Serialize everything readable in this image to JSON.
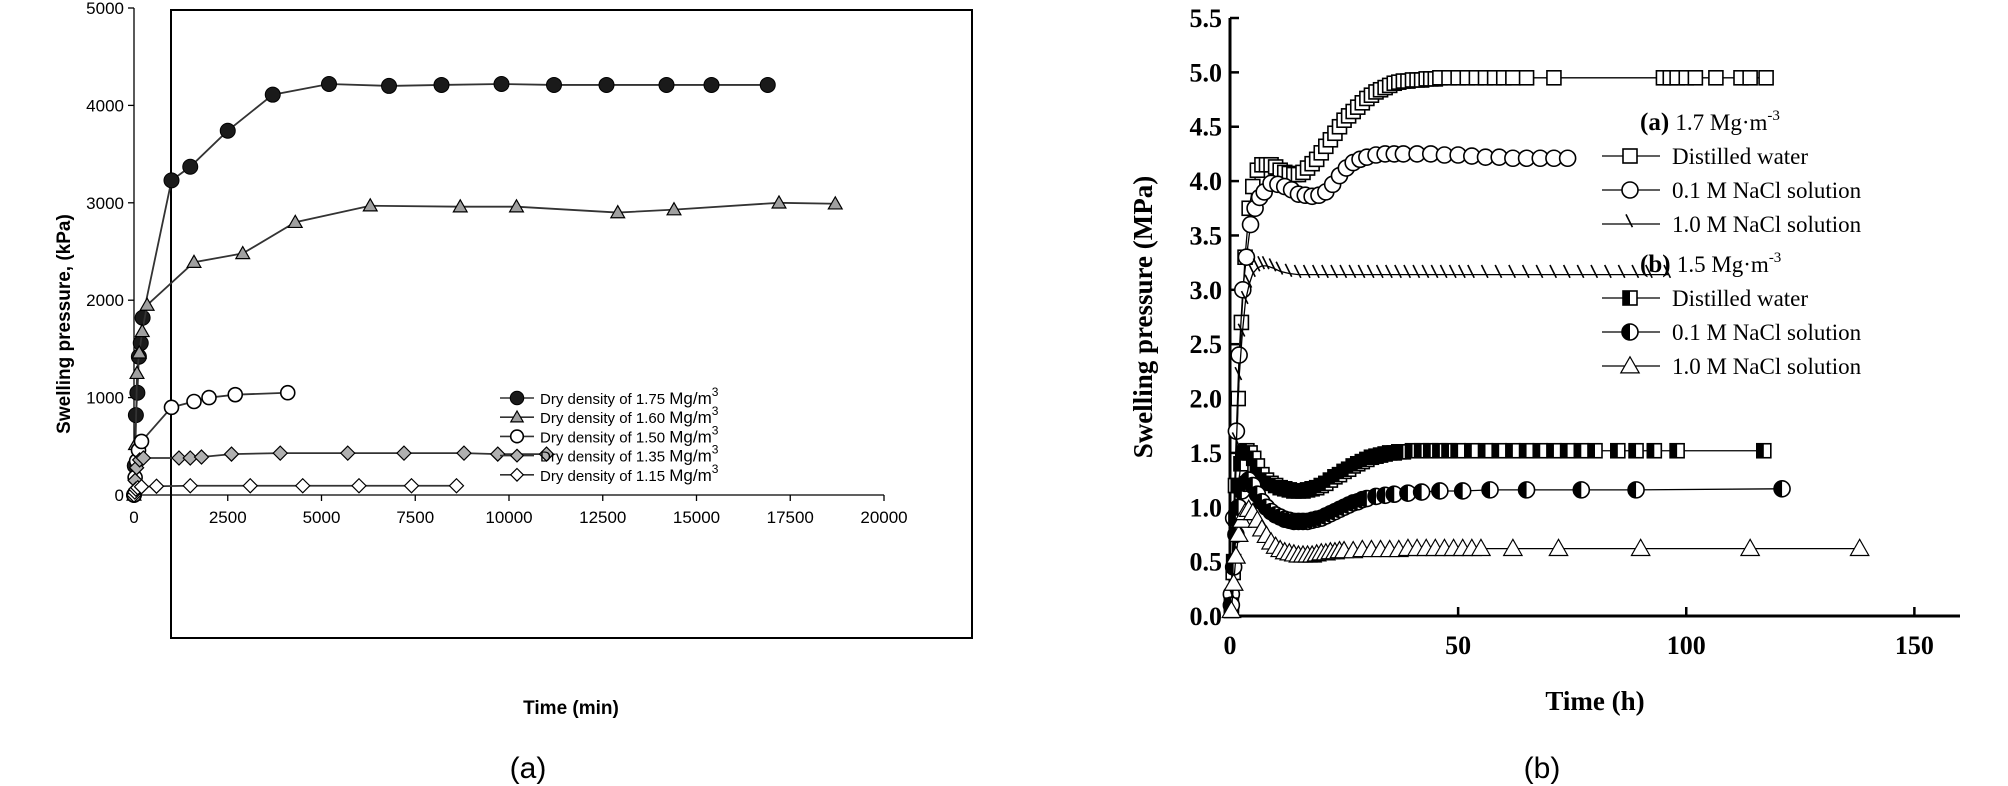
{
  "chart_data": [
    {
      "panel_label": "(a)",
      "type": "scatter",
      "xlabel": "Time (min)",
      "ylabel": "Swelling pressure, (kPa)",
      "xlim": [
        0,
        20000
      ],
      "ylim": [
        0,
        5000
      ],
      "xticks": [
        0,
        2500,
        5000,
        7500,
        10000,
        12500,
        15000,
        17500,
        20000
      ],
      "yticks": [
        0,
        1000,
        2000,
        3000,
        4000,
        5000
      ],
      "grid": false,
      "legend_position": "bottom-right",
      "series": [
        {
          "name": "Dry density of 1.75",
          "unit": "Mg/m",
          "unit_sup": "3",
          "marker": "filled-circle",
          "x": [
            0,
            20,
            50,
            90,
            130,
            180,
            230,
            1000,
            1500,
            2500,
            3700,
            5200,
            6800,
            8200,
            9800,
            11200,
            12600,
            14200,
            15400,
            16900
          ],
          "y": [
            0,
            300,
            820,
            1050,
            1420,
            1560,
            1820,
            3230,
            3370,
            3740,
            4110,
            4220,
            4200,
            4210,
            4220,
            4210,
            4210,
            4210,
            4210,
            4210
          ]
        },
        {
          "name": "Dry density of 1.60",
          "unit": "Mg/m",
          "unit_sup": "3",
          "marker": "filled-triangle",
          "x": [
            0,
            40,
            80,
            140,
            220,
            350,
            1600,
            2900,
            4300,
            6300,
            8700,
            10200,
            12900,
            14400,
            17200,
            18700
          ],
          "y": [
            0,
            520,
            1250,
            1460,
            1680,
            1950,
            2390,
            2480,
            2800,
            2970,
            2960,
            2960,
            2900,
            2930,
            3000,
            2990
          ],
          "hide_last_marker": false
        },
        {
          "name": "Dry density of 1.50",
          "unit": "Mg/m",
          "unit_sup": "3",
          "marker": "open-circle",
          "x": [
            0,
            30,
            70,
            120,
            200,
            1000,
            1600,
            2000,
            2700,
            4100
          ],
          "y": [
            0,
            180,
            350,
            460,
            550,
            900,
            960,
            1000,
            1030,
            1050
          ]
        },
        {
          "name": "Dry density of 1.35",
          "unit": "Mg/m",
          "unit_sup": "3",
          "marker": "gray-diamond",
          "x": [
            0,
            30,
            70,
            150,
            250,
            1200,
            1500,
            1800,
            2600,
            3900,
            5700,
            7200,
            8800,
            9700,
            11000
          ],
          "y": [
            0,
            150,
            280,
            360,
            380,
            380,
            380,
            390,
            420,
            430,
            430,
            430,
            430,
            420,
            420
          ]
        },
        {
          "name": "Dry density of 1.15",
          "unit": "Mg/m",
          "unit_sup": "3",
          "marker": "open-diamond",
          "x": [
            0,
            20,
            50,
            100,
            200,
            600,
            1500,
            3100,
            4500,
            6000,
            7400,
            8600
          ],
          "y": [
            0,
            30,
            60,
            75,
            85,
            90,
            95,
            95,
            95,
            95,
            95,
            95
          ]
        }
      ]
    },
    {
      "panel_label": "(b)",
      "type": "scatter",
      "xlabel": "Time (h)",
      "ylabel": "Swelling pressure (MPa)",
      "xlim": [
        0,
        160
      ],
      "ylim": [
        0,
        5.5
      ],
      "xticks": [
        0,
        50,
        100,
        150
      ],
      "yticks": [
        0.0,
        0.5,
        1.0,
        1.5,
        2.0,
        2.5,
        3.0,
        3.5,
        4.0,
        4.5,
        5.0,
        5.5
      ],
      "ytick_labels": [
        "0.0",
        "0.5",
        "1.0",
        "1.5",
        "2.0",
        "2.5",
        "3.0",
        "3.5",
        "4.0",
        "4.5",
        "5.0",
        "5.5"
      ],
      "grid": false,
      "legend_position": "right",
      "legend_groups": [
        {
          "label_bold": "(a)",
          "label": "1.7 Mg·m",
          "label_sup": "-3",
          "series": [
            0,
            1,
            2
          ]
        },
        {
          "label_bold": "(b)",
          "label": "1.5 Mg·m",
          "label_sup": "-3",
          "series": [
            3,
            4,
            5
          ]
        }
      ],
      "series": [
        {
          "name": "Distilled water",
          "marker": "open-square",
          "x": [
            0.3,
            0.7,
            1.2,
            1.8,
            2.5,
            3.3,
            4.2,
            5.0,
            6.0,
            7.0,
            8.0,
            9.0,
            10.0,
            11.0,
            12.0,
            13.0,
            14.0,
            15.0,
            16.0,
            17.0,
            18.0,
            19.0,
            20.0,
            21.0,
            22.0,
            23.0,
            24.0,
            25.0,
            26.0,
            27.0,
            28.0,
            29.0,
            30.0,
            31.0,
            32.0,
            33.0,
            34.0,
            35.0,
            36.0,
            37.0,
            38.0,
            39.0,
            40.0,
            41.0,
            42.0,
            43.0,
            44.0,
            45.0,
            46.0,
            48.0,
            50.0,
            52.0,
            54.0,
            56.0,
            58.0,
            60.0,
            62.0,
            65.0,
            71.0,
            95.0,
            96.5,
            98.0,
            100.0,
            102.0,
            106.5,
            112.0,
            114.0,
            117.5
          ],
          "y": [
            0.05,
            0.4,
            1.2,
            2.0,
            2.7,
            3.3,
            3.75,
            3.95,
            4.1,
            4.15,
            4.15,
            4.15,
            4.13,
            4.1,
            4.08,
            4.07,
            4.06,
            4.06,
            4.08,
            4.12,
            4.16,
            4.2,
            4.26,
            4.32,
            4.38,
            4.44,
            4.5,
            4.56,
            4.6,
            4.64,
            4.68,
            4.72,
            4.76,
            4.79,
            4.82,
            4.84,
            4.86,
            4.88,
            4.9,
            4.91,
            4.92,
            4.92,
            4.93,
            4.93,
            4.93,
            4.94,
            4.94,
            4.94,
            4.95,
            4.95,
            4.95,
            4.95,
            4.95,
            4.95,
            4.95,
            4.95,
            4.95,
            4.95,
            4.95,
            4.95,
            4.95,
            4.95,
            4.95,
            4.95,
            4.95,
            4.95,
            4.95,
            4.95
          ]
        },
        {
          "name": "0.1 M NaCl solution",
          "marker": "open-circle",
          "x": [
            0.3,
            0.8,
            1.4,
            2.0,
            2.8,
            3.6,
            4.5,
            5.5,
            6.5,
            7.5,
            9.0,
            10.5,
            12.0,
            13.5,
            15.0,
            16.5,
            18.0,
            19.5,
            21.0,
            22.5,
            24.0,
            25.5,
            27.0,
            28.5,
            30.0,
            32.0,
            34.0,
            36.0,
            38.0,
            41.0,
            44.0,
            47.0,
            50.0,
            53.0,
            56.0,
            59.0,
            62.0,
            65.0,
            68.0,
            71.0,
            74.0
          ],
          "y": [
            0.2,
            0.9,
            1.7,
            2.4,
            3.0,
            3.3,
            3.6,
            3.75,
            3.85,
            3.9,
            3.98,
            3.97,
            3.95,
            3.92,
            3.88,
            3.87,
            3.86,
            3.87,
            3.9,
            3.97,
            4.05,
            4.12,
            4.17,
            4.2,
            4.22,
            4.24,
            4.25,
            4.25,
            4.25,
            4.25,
            4.25,
            4.24,
            4.24,
            4.23,
            4.22,
            4.22,
            4.21,
            4.21,
            4.21,
            4.21,
            4.21
          ]
        },
        {
          "name": "1.0 M NaCl solution",
          "marker": "tick",
          "x": [
            0.3,
            0.8,
            1.4,
            2.0,
            2.7,
            3.4,
            4.2,
            5.0,
            6.0,
            7.0,
            8.0,
            9.5,
            11.0,
            13.0,
            15.0,
            17.0,
            19.0,
            21.0,
            23.0,
            25.0,
            27.0,
            29.0,
            31.0,
            33.0,
            35.0,
            37.0,
            39.0,
            41.0,
            43.0,
            45.0,
            47.0,
            49.0,
            51.0,
            53.0,
            56.0,
            59.0,
            62.0,
            65.0,
            68.0,
            71.0,
            74.0,
            77.0,
            80.0,
            83.0,
            86.0,
            89.0,
            92.0,
            96.0
          ],
          "y": [
            0.2,
            0.9,
            1.6,
            2.2,
            2.6,
            2.9,
            3.05,
            3.15,
            3.2,
            3.22,
            3.22,
            3.2,
            3.17,
            3.15,
            3.14,
            3.14,
            3.14,
            3.14,
            3.14,
            3.14,
            3.14,
            3.14,
            3.14,
            3.14,
            3.14,
            3.14,
            3.14,
            3.14,
            3.14,
            3.14,
            3.14,
            3.14,
            3.14,
            3.14,
            3.14,
            3.14,
            3.14,
            3.14,
            3.14,
            3.14,
            3.14,
            3.14,
            3.14,
            3.14,
            3.14,
            3.14,
            3.14,
            3.14
          ]
        },
        {
          "name": "Distilled water",
          "marker": "half-filled-square",
          "x": [
            0.3,
            0.8,
            1.3,
            1.8,
            2.4,
            3.0,
            3.7,
            4.4,
            5.2,
            6.0,
            7.0,
            8.0,
            9.0,
            10.0,
            11.0,
            12.0,
            13.0,
            14.0,
            15.0,
            16.0,
            17.0,
            18.0,
            19.0,
            20.0,
            21.0,
            22.0,
            23.0,
            24.0,
            25.0,
            26.0,
            27.0,
            28.0,
            29.0,
            30.0,
            31.0,
            32.0,
            33.0,
            34.0,
            35.0,
            36.0,
            37.0,
            38.0,
            40.0,
            42.0,
            44.0,
            46.0,
            48.0,
            50.0,
            53.0,
            56.0,
            59.0,
            62.0,
            65.0,
            68.0,
            71.0,
            74.0,
            77.0,
            80.0,
            85.0,
            89.0,
            93.0,
            98.0,
            117.0
          ],
          "y": [
            0.1,
            0.5,
            0.9,
            1.2,
            1.4,
            1.5,
            1.52,
            1.5,
            1.45,
            1.38,
            1.3,
            1.25,
            1.22,
            1.2,
            1.18,
            1.17,
            1.16,
            1.15,
            1.15,
            1.15,
            1.16,
            1.17,
            1.18,
            1.2,
            1.22,
            1.25,
            1.28,
            1.3,
            1.33,
            1.35,
            1.38,
            1.4,
            1.42,
            1.44,
            1.46,
            1.47,
            1.48,
            1.49,
            1.5,
            1.5,
            1.51,
            1.51,
            1.52,
            1.52,
            1.52,
            1.52,
            1.52,
            1.52,
            1.52,
            1.52,
            1.52,
            1.52,
            1.52,
            1.52,
            1.52,
            1.52,
            1.52,
            1.52,
            1.52,
            1.52,
            1.52,
            1.52,
            1.52
          ]
        },
        {
          "name": "0.1 M NaCl solution",
          "marker": "half-filled-circle",
          "x": [
            0.3,
            0.8,
            1.3,
            1.9,
            2.6,
            3.3,
            4.1,
            5.0,
            6.0,
            7.0,
            8.0,
            9.0,
            10.0,
            11.0,
            12.0,
            13.0,
            14.0,
            15.0,
            16.0,
            17.0,
            18.0,
            19.0,
            20.0,
            21.0,
            22.0,
            23.0,
            24.0,
            25.0,
            26.0,
            27.0,
            28.0,
            29.0,
            30.0,
            32.0,
            34.0,
            36.0,
            39.0,
            42.0,
            46.0,
            51.0,
            57.0,
            65.0,
            77.0,
            89.0,
            121.0
          ],
          "y": [
            0.1,
            0.45,
            0.75,
            1.0,
            1.15,
            1.22,
            1.25,
            1.2,
            1.12,
            1.05,
            1.0,
            0.96,
            0.93,
            0.91,
            0.89,
            0.88,
            0.87,
            0.87,
            0.87,
            0.87,
            0.88,
            0.89,
            0.9,
            0.92,
            0.94,
            0.96,
            0.98,
            1.0,
            1.02,
            1.04,
            1.05,
            1.07,
            1.08,
            1.1,
            1.11,
            1.12,
            1.13,
            1.14,
            1.15,
            1.15,
            1.16,
            1.16,
            1.16,
            1.16,
            1.17
          ]
        },
        {
          "name": "1.0 M NaCl solution",
          "marker": "filled-triangle",
          "x": [
            0.3,
            0.8,
            1.3,
            1.9,
            2.6,
            3.3,
            4.1,
            5.0,
            6.0,
            7.0,
            8.0,
            9.0,
            10.0,
            11.0,
            12.0,
            13.0,
            14.0,
            15.0,
            16.0,
            17.0,
            18.0,
            19.0,
            20.0,
            21.0,
            22.0,
            23.0,
            24.0,
            25.0,
            27.0,
            29.0,
            31.0,
            33.0,
            35.0,
            37.0,
            39.0,
            41.0,
            43.0,
            45.0,
            47.0,
            49.0,
            51.0,
            53.0,
            55.0,
            62.0,
            72.0,
            90.0,
            114.0,
            138.0
          ],
          "y": [
            0.05,
            0.3,
            0.55,
            0.75,
            0.88,
            0.95,
            0.98,
            0.95,
            0.88,
            0.8,
            0.74,
            0.68,
            0.64,
            0.61,
            0.59,
            0.58,
            0.57,
            0.56,
            0.56,
            0.56,
            0.56,
            0.57,
            0.58,
            0.58,
            0.59,
            0.59,
            0.6,
            0.6,
            0.6,
            0.61,
            0.61,
            0.61,
            0.61,
            0.61,
            0.62,
            0.62,
            0.62,
            0.62,
            0.62,
            0.62,
            0.62,
            0.62,
            0.62,
            0.62,
            0.62,
            0.62,
            0.62,
            0.62
          ]
        }
      ]
    }
  ]
}
